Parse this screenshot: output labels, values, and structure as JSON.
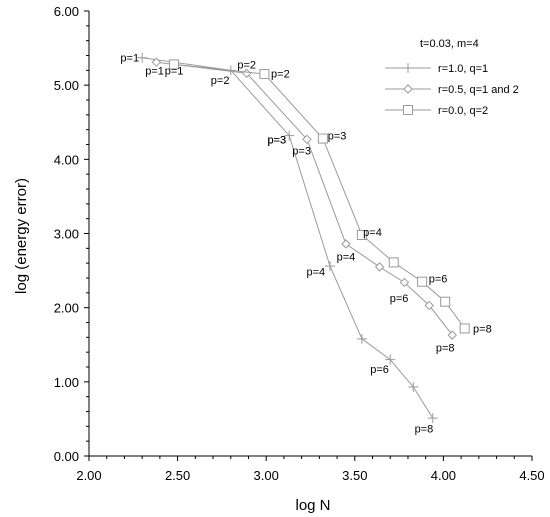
{
  "chart_data": {
    "type": "line",
    "xlabel": "log N",
    "ylabel": "log (energy error)",
    "xlim": [
      2.0,
      4.5
    ],
    "ylim": [
      0.0,
      6.0
    ],
    "xticks": [
      "2.00",
      "2.50",
      "3.00",
      "3.50",
      "4.00",
      "4.50"
    ],
    "yticks": [
      "0.00",
      "1.00",
      "2.00",
      "3.00",
      "4.00",
      "5.00",
      "6.00"
    ],
    "grid": false,
    "legend": {
      "title": "t=0.03, m=4",
      "placement": "top-right"
    },
    "series": [
      {
        "name": "r=1.0, q=1",
        "marker": "plus",
        "points": [
          {
            "x": 2.3,
            "y": 5.37
          },
          {
            "x": 2.8,
            "y": 5.2
          },
          {
            "x": 3.13,
            "y": 4.32
          },
          {
            "x": 3.36,
            "y": 2.56
          },
          {
            "x": 3.54,
            "y": 1.58
          },
          {
            "x": 3.7,
            "y": 1.3
          },
          {
            "x": 3.83,
            "y": 0.93
          },
          {
            "x": 3.94,
            "y": 0.51
          }
        ],
        "labels": [
          {
            "text": "p=1",
            "x": 2.23,
            "y": 5.37
          },
          {
            "text": "p=2",
            "x": 2.74,
            "y": 5.07
          },
          {
            "text": "p=3",
            "x": 3.06,
            "y": 4.27
          },
          {
            "text": "p=4",
            "x": 3.28,
            "y": 2.49
          },
          {
            "text": "p=6",
            "x": 3.64,
            "y": 1.17
          },
          {
            "text": "p=8",
            "x": 3.89,
            "y": 0.37
          }
        ]
      },
      {
        "name": "r=0.5, q=1 and 2",
        "marker": "diamond",
        "points": [
          {
            "x": 2.38,
            "y": 5.31
          },
          {
            "x": 2.89,
            "y": 5.16
          },
          {
            "x": 3.23,
            "y": 4.27
          },
          {
            "x": 3.45,
            "y": 2.86
          },
          {
            "x": 3.64,
            "y": 2.55
          },
          {
            "x": 3.78,
            "y": 2.34
          },
          {
            "x": 3.92,
            "y": 2.03
          },
          {
            "x": 4.05,
            "y": 1.63
          }
        ],
        "labels": [
          {
            "text": "p=1",
            "x": 2.37,
            "y": 5.2
          },
          {
            "text": "p=2",
            "x": 2.89,
            "y": 5.28
          },
          {
            "text": "p=3",
            "x": 3.06,
            "y": 4.27
          },
          {
            "text": "p=3",
            "x": 3.2,
            "y": 4.12
          },
          {
            "text": "p=4",
            "x": 3.45,
            "y": 2.69
          },
          {
            "text": "p=6",
            "x": 3.75,
            "y": 2.13
          },
          {
            "text": "p=8",
            "x": 4.01,
            "y": 1.46
          }
        ]
      },
      {
        "name": "r=0.0, q=2",
        "marker": "square",
        "points": [
          {
            "x": 2.48,
            "y": 5.28
          },
          {
            "x": 2.99,
            "y": 5.15
          },
          {
            "x": 3.32,
            "y": 4.28
          },
          {
            "x": 3.54,
            "y": 2.98
          },
          {
            "x": 3.72,
            "y": 2.61
          },
          {
            "x": 3.88,
            "y": 2.35
          },
          {
            "x": 4.01,
            "y": 2.08
          },
          {
            "x": 4.12,
            "y": 1.72
          }
        ],
        "labels": [
          {
            "text": "p=1",
            "x": 2.48,
            "y": 5.2
          },
          {
            "text": "p=2",
            "x": 3.08,
            "y": 5.16
          },
          {
            "text": "p=3",
            "x": 3.4,
            "y": 4.32
          },
          {
            "text": "p=4",
            "x": 3.6,
            "y": 3.02
          },
          {
            "text": "p=6",
            "x": 3.97,
            "y": 2.39
          },
          {
            "text": "p=8",
            "x": 4.22,
            "y": 1.72
          }
        ]
      }
    ]
  }
}
